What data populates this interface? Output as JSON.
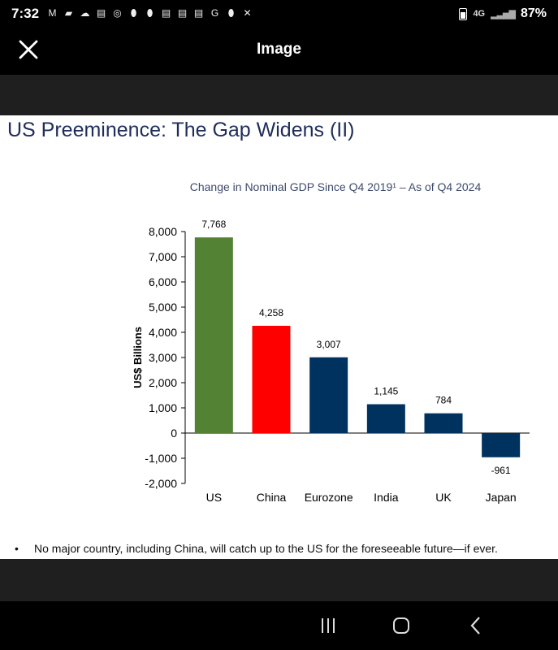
{
  "status_bar": {
    "time": "7:32",
    "network": "4G",
    "battery": "87%",
    "notification_icons": [
      "gmail-icon",
      "bookmark-icon",
      "cloud-icon",
      "news-icon",
      "basketball-icon",
      "football-icon",
      "football-icon",
      "news-icon",
      "news-icon",
      "news-icon",
      "google-icon",
      "football-icon",
      "hockey-icon"
    ]
  },
  "header": {
    "title": "Image"
  },
  "slide": {
    "title": "US Preeminence: The Gap Widens (II)",
    "bullet": "No major country, including China, will catch up to the US for the foreseeable future—if ever.",
    "bullet_marker": "•"
  },
  "chart_data": {
    "type": "bar",
    "title": "Change in Nominal GDP Since Q4 2019¹ – As of Q4 2024",
    "ylabel": "US$ Billions",
    "categories": [
      "US",
      "China",
      "Eurozone",
      "India",
      "UK",
      "Japan"
    ],
    "values": [
      7768,
      4258,
      3007,
      1145,
      784,
      -961
    ],
    "value_labels": [
      "7,768",
      "4,258",
      "3,007",
      "1,145",
      "784",
      "-961"
    ],
    "colors": [
      "#548235",
      "#ff0000",
      "#00325f",
      "#00325f",
      "#00325f",
      "#00325f"
    ],
    "ylim": [
      -2000,
      8000
    ],
    "yticks": [
      -2000,
      -1000,
      0,
      1000,
      2000,
      3000,
      4000,
      5000,
      6000,
      7000,
      8000
    ],
    "ytick_labels": [
      "-2,000",
      "-1,000",
      "0",
      "1,000",
      "2,000",
      "3,000",
      "4,000",
      "5,000",
      "6,000",
      "7,000",
      "8,000"
    ],
    "grid": false,
    "legend": "none"
  }
}
